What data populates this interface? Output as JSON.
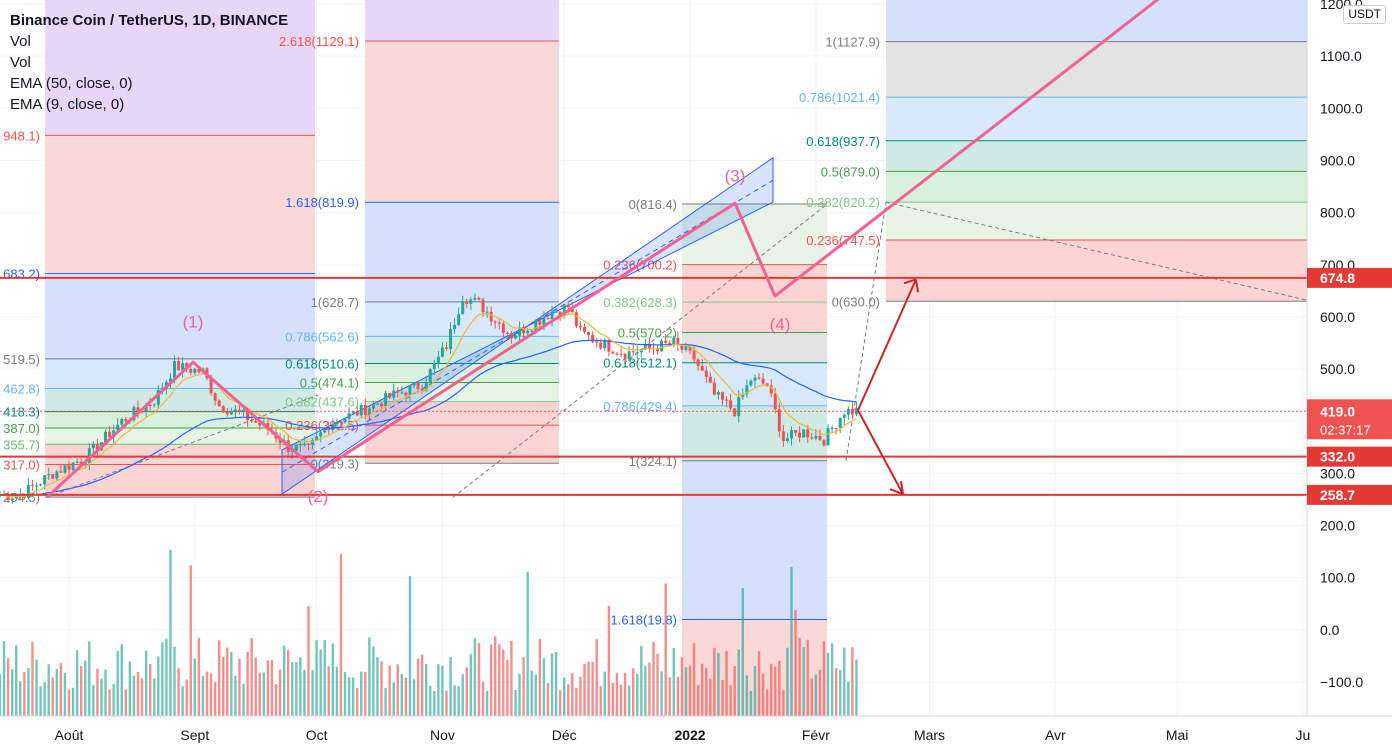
{
  "legend": {
    "title": "Binance Coin / TetherUS, 1D, BINANCE",
    "lines": [
      "Vol",
      "Vol",
      "EMA (50, close, 0)",
      "EMA (9, close, 0)"
    ]
  },
  "currency": "USDT",
  "colors": {
    "up": "#26a69a",
    "down": "#ef5350",
    "ema50": "#2962ff",
    "ema9": "#f0b73a",
    "hline": "#e53935",
    "wave": "#f06292",
    "arrow": "#c62828",
    "channel": "#2962ff"
  },
  "chart_data": {
    "type": "candlestick",
    "symbol": "BNBUSDT",
    "price_axis": {
      "ylim": [
        -180,
        1200
      ],
      "ticks": [
        -100,
        0,
        100,
        200,
        300,
        400,
        500,
        600,
        700,
        800,
        900,
        1000,
        1100,
        1200
      ],
      "tick_labels": [
        "−100.0",
        "0.0",
        "100.0",
        "200.0",
        "300.0",
        "400.0",
        "500.0",
        "600.0",
        "700.0",
        "800.0",
        "900.0",
        "1000.0",
        "1100.0",
        "1200.0"
      ]
    },
    "time_axis": {
      "start": "2021-07-15",
      "end": "2022-06-02",
      "ticks": [
        {
          "date": "2021-08-01",
          "label": "Août"
        },
        {
          "date": "2021-09-01",
          "label": "Sept"
        },
        {
          "date": "2021-10-01",
          "label": "Oct"
        },
        {
          "date": "2021-11-01",
          "label": "Nov"
        },
        {
          "date": "2021-12-01",
          "label": "Déc"
        },
        {
          "date": "2022-01-01",
          "label": "2022"
        },
        {
          "date": "2022-02-01",
          "label": "Févr"
        },
        {
          "date": "2022-03-01",
          "label": "Mars"
        },
        {
          "date": "2022-04-01",
          "label": "Avr"
        },
        {
          "date": "2022-05-01",
          "label": "Mai"
        },
        {
          "date": "2022-06-01",
          "label": "Ju"
        }
      ]
    },
    "price_path": [
      [
        "2021-07-20",
        258
      ],
      [
        "2021-07-28",
        300
      ],
      [
        "2021-08-05",
        330
      ],
      [
        "2021-08-14",
        400
      ],
      [
        "2021-08-22",
        440
      ],
      [
        "2021-08-27",
        505
      ],
      [
        "2021-09-03",
        495
      ],
      [
        "2021-09-07",
        430
      ],
      [
        "2021-09-12",
        415
      ],
      [
        "2021-09-20",
        380
      ],
      [
        "2021-09-24",
        350
      ],
      [
        "2021-09-29",
        345
      ],
      [
        "2021-10-04",
        395
      ],
      [
        "2021-10-12",
        420
      ],
      [
        "2021-10-20",
        450
      ],
      [
        "2021-10-27",
        470
      ],
      [
        "2021-11-02",
        545
      ],
      [
        "2021-11-06",
        640
      ],
      [
        "2021-11-10",
        625
      ],
      [
        "2021-11-18",
        565
      ],
      [
        "2021-11-24",
        590
      ],
      [
        "2021-11-28",
        610
      ],
      [
        "2021-12-02",
        620
      ],
      [
        "2021-12-05",
        570
      ],
      [
        "2021-12-10",
        550
      ],
      [
        "2021-12-16",
        530
      ],
      [
        "2021-12-22",
        540
      ],
      [
        "2021-12-28",
        550
      ],
      [
        "2022-01-02",
        520
      ],
      [
        "2022-01-07",
        450
      ],
      [
        "2022-01-12",
        420
      ],
      [
        "2022-01-16",
        480
      ],
      [
        "2022-01-20",
        470
      ],
      [
        "2022-01-24",
        365
      ],
      [
        "2022-01-29",
        380
      ],
      [
        "2022-02-03",
        365
      ],
      [
        "2022-02-08",
        420
      ],
      [
        "2022-02-11",
        419
      ]
    ],
    "last_price": {
      "value": 419.0,
      "label": "419.0",
      "countdown": "02:37:17"
    },
    "horizontal_levels": [
      {
        "value": 674.8,
        "label": "674.8"
      },
      {
        "value": 332.0,
        "label": "332.0"
      },
      {
        "value": 258.7,
        "label": "258.7"
      }
    ],
    "volume": {
      "axis_labels": [
        "Vol"
      ],
      "note": "volume histogram at bottom, same time axis"
    },
    "fib_left": {
      "levels": [
        {
          "label": "948.1)",
          "value": 948.1,
          "color": "#ef5350"
        },
        {
          "label": "683.2)",
          "value": 683.2,
          "color": "#2962ff"
        },
        {
          "label": "519.5)",
          "value": 519.5,
          "color": "#787b86"
        },
        {
          "label": "462.8)",
          "value": 462.8,
          "color": "#64b5f6"
        },
        {
          "label": "418.3)",
          "value": 418.3,
          "color": "#00897b"
        },
        {
          "label": "387.0)",
          "value": 387.0,
          "color": "#43a047"
        },
        {
          "label": "355.7)",
          "value": 355.7,
          "color": "#66bb6a"
        },
        {
          "label": "317.0)",
          "value": 317.0,
          "color": "#ef5350"
        },
        {
          "label": "254.5)",
          "value": 254.5,
          "color": "#787b86"
        }
      ]
    },
    "fib_mid": {
      "levels": [
        {
          "label": "2.618(1129.1)",
          "value": 1129.1,
          "color": "#ef5350"
        },
        {
          "label": "1.618(819.9)",
          "value": 819.9,
          "color": "#2962ff"
        },
        {
          "label": "1(628.7)",
          "value": 628.7,
          "color": "#787b86"
        },
        {
          "label": "0.786(562.6)",
          "value": 562.6,
          "color": "#64b5f6"
        },
        {
          "label": "0.618(510.6)",
          "value": 510.6,
          "color": "#00897b"
        },
        {
          "label": "0.5(474.1)",
          "value": 474.1,
          "color": "#43a047"
        },
        {
          "label": "0.382(437.6)",
          "value": 437.6,
          "color": "#81c784"
        },
        {
          "label": "0.236(392.5)",
          "value": 392.5,
          "color": "#ef5350"
        },
        {
          "label": "0(319.3)",
          "value": 319.3,
          "color": "#787b86"
        }
      ]
    },
    "fib_right": {
      "levels": [
        {
          "label": "0(816.4)",
          "value": 816.4,
          "color": "#787b86"
        },
        {
          "label": "0.236(700.2)",
          "value": 700.2,
          "color": "#ef5350"
        },
        {
          "label": "0.382(628.3)",
          "value": 628.3,
          "color": "#81c784"
        },
        {
          "label": "0.5(570.2)",
          "value": 570.2,
          "color": "#43a047"
        },
        {
          "label": "0.618(512.1)",
          "value": 512.1,
          "color": "#00897b"
        },
        {
          "label": "0.786(429.4)",
          "value": 429.4,
          "color": "#64b5f6"
        },
        {
          "label": "1(324.1)",
          "value": 324.1,
          "color": "#787b86"
        },
        {
          "label": "1.618(19.8)",
          "value": 19.8,
          "color": "#2962ff"
        }
      ]
    },
    "fib_ext": {
      "levels": [
        {
          "label": "1(1127.9)",
          "value": 1127.9,
          "color": "#787b86"
        },
        {
          "label": "0.786(1021.4)",
          "value": 1021.4,
          "color": "#64b5f6"
        },
        {
          "label": "0.618(937.7)",
          "value": 937.7,
          "color": "#00897b"
        },
        {
          "label": "0.5(879.0)",
          "value": 879.0,
          "color": "#43a047"
        },
        {
          "label": "0.382(820.2)",
          "value": 820.2,
          "color": "#81c784"
        },
        {
          "label": "0.236(747.5)",
          "value": 747.5,
          "color": "#ef5350"
        },
        {
          "label": "0(630.0)",
          "value": 630.0,
          "color": "#787b86"
        }
      ]
    },
    "wave_labels": [
      {
        "label": "(1)",
        "date": "2021-08-27",
        "value": 505
      },
      {
        "label": "(2)",
        "date": "2021-09-29",
        "value": 258
      },
      {
        "label": "(3)",
        "date": "2022-01-11",
        "value": 870
      },
      {
        "label": "(4)",
        "date": "2022-01-25",
        "value": 580
      }
    ]
  }
}
